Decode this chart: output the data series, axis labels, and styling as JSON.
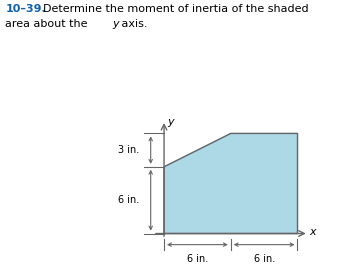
{
  "shape_x": [
    0,
    0,
    6,
    12,
    12
  ],
  "shape_y": [
    0,
    6,
    9,
    9,
    0
  ],
  "fill_color": "#add8e6",
  "edge_color": "#666666",
  "dc": "#666666",
  "title_num": "10–39.",
  "title_line1": "Determine the moment of inertia of the shaded",
  "title_line2_pre": "area about the ",
  "title_line2_italic": "y",
  "title_line2_post": " axis.",
  "figsize": [
    3.47,
    2.78
  ],
  "dpi": 100
}
